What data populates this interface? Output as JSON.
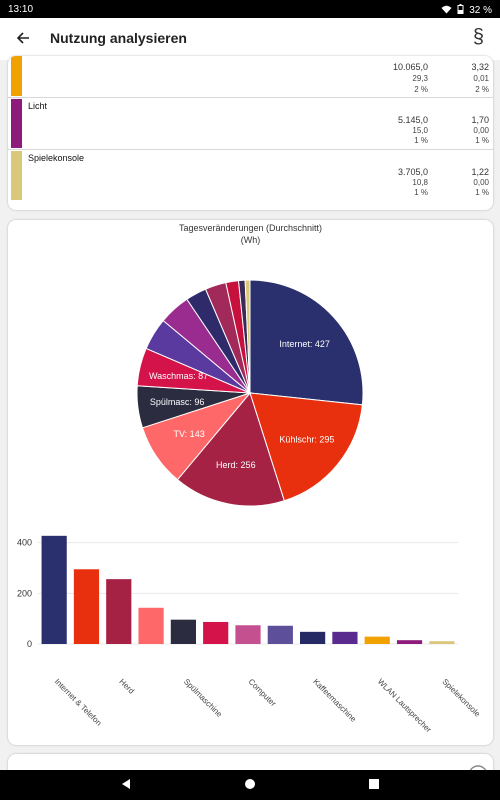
{
  "status": {
    "time": "13:10",
    "battery": "32 %"
  },
  "app_bar": {
    "title": "Nutzung analysieren",
    "back_icon": "arrow-left-icon",
    "law_label": "§"
  },
  "list": [
    {
      "name": "",
      "color": "#f2a200",
      "v1": "10.065,0",
      "v2": "29,3",
      "v3": "2 %",
      "w1": "3,32",
      "w2": "0,01",
      "w3": "2 %"
    },
    {
      "name": "Licht",
      "color": "#8e1a7b",
      "v1": "5.145,0",
      "v2": "15,0",
      "v3": "1 %",
      "w1": "1,70",
      "w2": "0,00",
      "w3": "1 %"
    },
    {
      "name": "Spielekonsole",
      "color": "#d9c77a",
      "v1": "3.705,0",
      "v2": "10,8",
      "v3": "1 %",
      "w1": "1,22",
      "w2": "0,00",
      "w3": "1 %"
    }
  ],
  "chart_data": {
    "type": "pie",
    "title": "Tagesveränderungen (Durchschnitt)",
    "subtitle": "(Wh)",
    "slices": [
      {
        "name": "Internet & Telefon",
        "label": "Internet: 427",
        "value": 427,
        "color": "#2a2f6e"
      },
      {
        "name": "Kühlschrank",
        "label": "Kühlschr: 295",
        "value": 295,
        "color": "#e8300e"
      },
      {
        "name": "Herd",
        "label": "Herd: 256",
        "value": 256,
        "color": "#a52245"
      },
      {
        "name": "TV",
        "label": "TV: 143",
        "value": 143,
        "color": "#ff6868"
      },
      {
        "name": "Spülmaschine",
        "label": "Spülmasc: 96",
        "value": 96,
        "color": "#2b2c40"
      },
      {
        "name": "Waschmaschine",
        "label": "Waschmas: 87",
        "value": 87,
        "color": "#d3134a"
      },
      {
        "name": "Computer",
        "label": "",
        "value": 74,
        "color": "#5a3a9e"
      },
      {
        "name": "",
        "label": "",
        "value": 72,
        "color": "#9a2b8f"
      },
      {
        "name": "Kaffeemaschine",
        "label": "",
        "value": 48,
        "color": "#2f2b6b"
      },
      {
        "name": "",
        "label": "",
        "value": 48,
        "color": "#a12a5a"
      },
      {
        "name": "WLAN Lautsprecher",
        "label": "",
        "value": 29,
        "color": "#c8103c"
      },
      {
        "name": "Licht",
        "label": "",
        "value": 15,
        "color": "#3a2a55"
      },
      {
        "name": "Spielekonsole",
        "label": "",
        "value": 11,
        "color": "#d9c77a"
      }
    ],
    "bar": {
      "type": "bar",
      "yticks": [
        0,
        200,
        400
      ],
      "ylim": [
        0,
        450
      ],
      "bars": [
        {
          "value": 427,
          "color": "#2a2f6e"
        },
        {
          "value": 295,
          "color": "#e8300e"
        },
        {
          "value": 256,
          "color": "#a52245"
        },
        {
          "value": 143,
          "color": "#ff6868"
        },
        {
          "value": 96,
          "color": "#2b2c40"
        },
        {
          "value": 87,
          "color": "#d3134a"
        },
        {
          "value": 74,
          "color": "#c4508f"
        },
        {
          "value": 72,
          "color": "#5e4f9a"
        },
        {
          "value": 48,
          "color": "#252a64"
        },
        {
          "value": 48,
          "color": "#5a2b8e"
        },
        {
          "value": 29,
          "color": "#f2a200"
        },
        {
          "value": 15,
          "color": "#8e1a7b"
        },
        {
          "value": 11,
          "color": "#d9c77a"
        }
      ],
      "xlabels": [
        {
          "index": 0,
          "text": "Internet & Telefon"
        },
        {
          "index": 2,
          "text": "Herd"
        },
        {
          "index": 4,
          "text": "Spülmaschine"
        },
        {
          "index": 6,
          "text": "Computer"
        },
        {
          "index": 8,
          "text": "Kaffeemaschine"
        },
        {
          "index": 10,
          "text": "WLAN Lautsprecher"
        },
        {
          "index": 12,
          "text": "Spielekonsole"
        }
      ]
    }
  }
}
